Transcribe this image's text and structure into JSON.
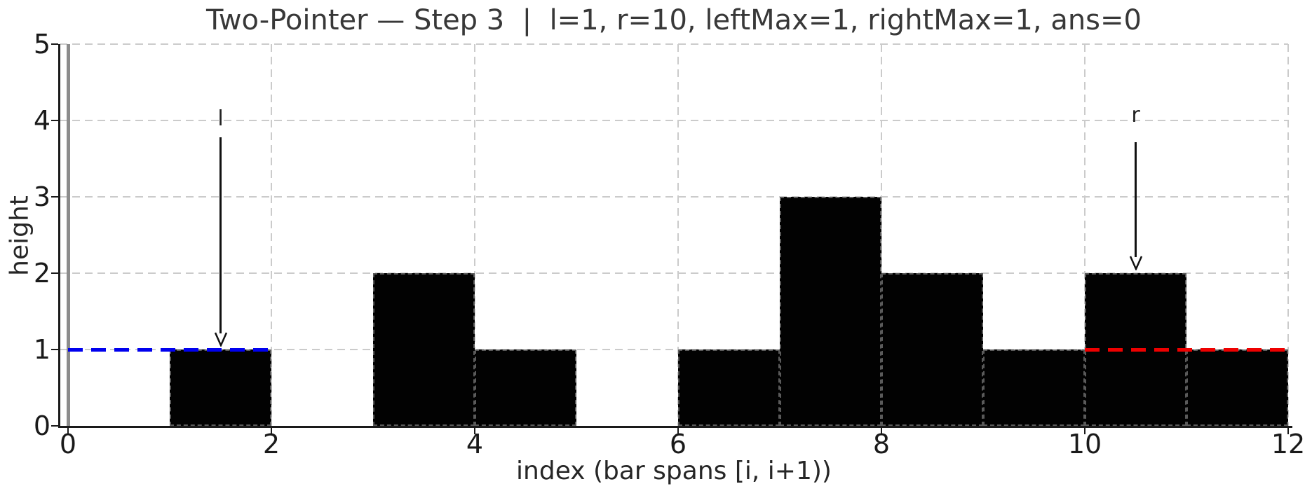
{
  "chart_data": {
    "type": "bar",
    "title": "Two-Pointer — Step 3  |  l=1, r=10, leftMax=1, rightMax=1, ans=0",
    "xlabel": "index (bar spans [i, i+1))",
    "ylabel": "height",
    "categories": [
      0,
      1,
      2,
      3,
      4,
      5,
      6,
      7,
      8,
      9,
      10,
      11
    ],
    "values": [
      0,
      1,
      0,
      2,
      1,
      0,
      1,
      3,
      2,
      1,
      2,
      1
    ],
    "bar_span_per_index": 1,
    "xlim": [
      0,
      12
    ],
    "ylim": [
      0,
      5
    ],
    "xticks": [
      "0",
      "2",
      "4",
      "6",
      "8",
      "10",
      "12"
    ],
    "xtick_values": [
      0,
      2,
      4,
      6,
      8,
      10,
      12
    ],
    "yticks": [
      "0",
      "1",
      "2",
      "3",
      "4",
      "5"
    ],
    "ytick_values": [
      0,
      1,
      2,
      3,
      4,
      5
    ],
    "grid": "dashed light-gray, horizontal at each integer y, vertical at even x",
    "legend_position": "none",
    "bar_color": "#020202",
    "bar_edge_style": "dashed gray",
    "wall_line": {
      "x": 0,
      "color": "#8c8c8c",
      "orientation": "vertical"
    },
    "left_max_line": {
      "label_meaning": "leftMax=1",
      "y": 1,
      "x_start": 0,
      "x_end": 2,
      "color": "#0000ee",
      "style": "dashed"
    },
    "right_max_line": {
      "label_meaning": "rightMax=1",
      "y": 1,
      "x_start": 10,
      "x_end": 12,
      "color": "#ee0000",
      "style": "dashed"
    },
    "pointers": [
      {
        "label": "l",
        "x": 1.5,
        "tip_height": 1,
        "label_height": 4.0,
        "arrow_from_height": 3.78
      },
      {
        "label": "r",
        "x": 10.5,
        "tip_height": 2,
        "label_height": 4.05,
        "arrow_from_height": 3.72
      }
    ],
    "state": {
      "step": 3,
      "l": 1,
      "r": 10,
      "leftMax": 1,
      "rightMax": 1,
      "ans": 0
    }
  }
}
